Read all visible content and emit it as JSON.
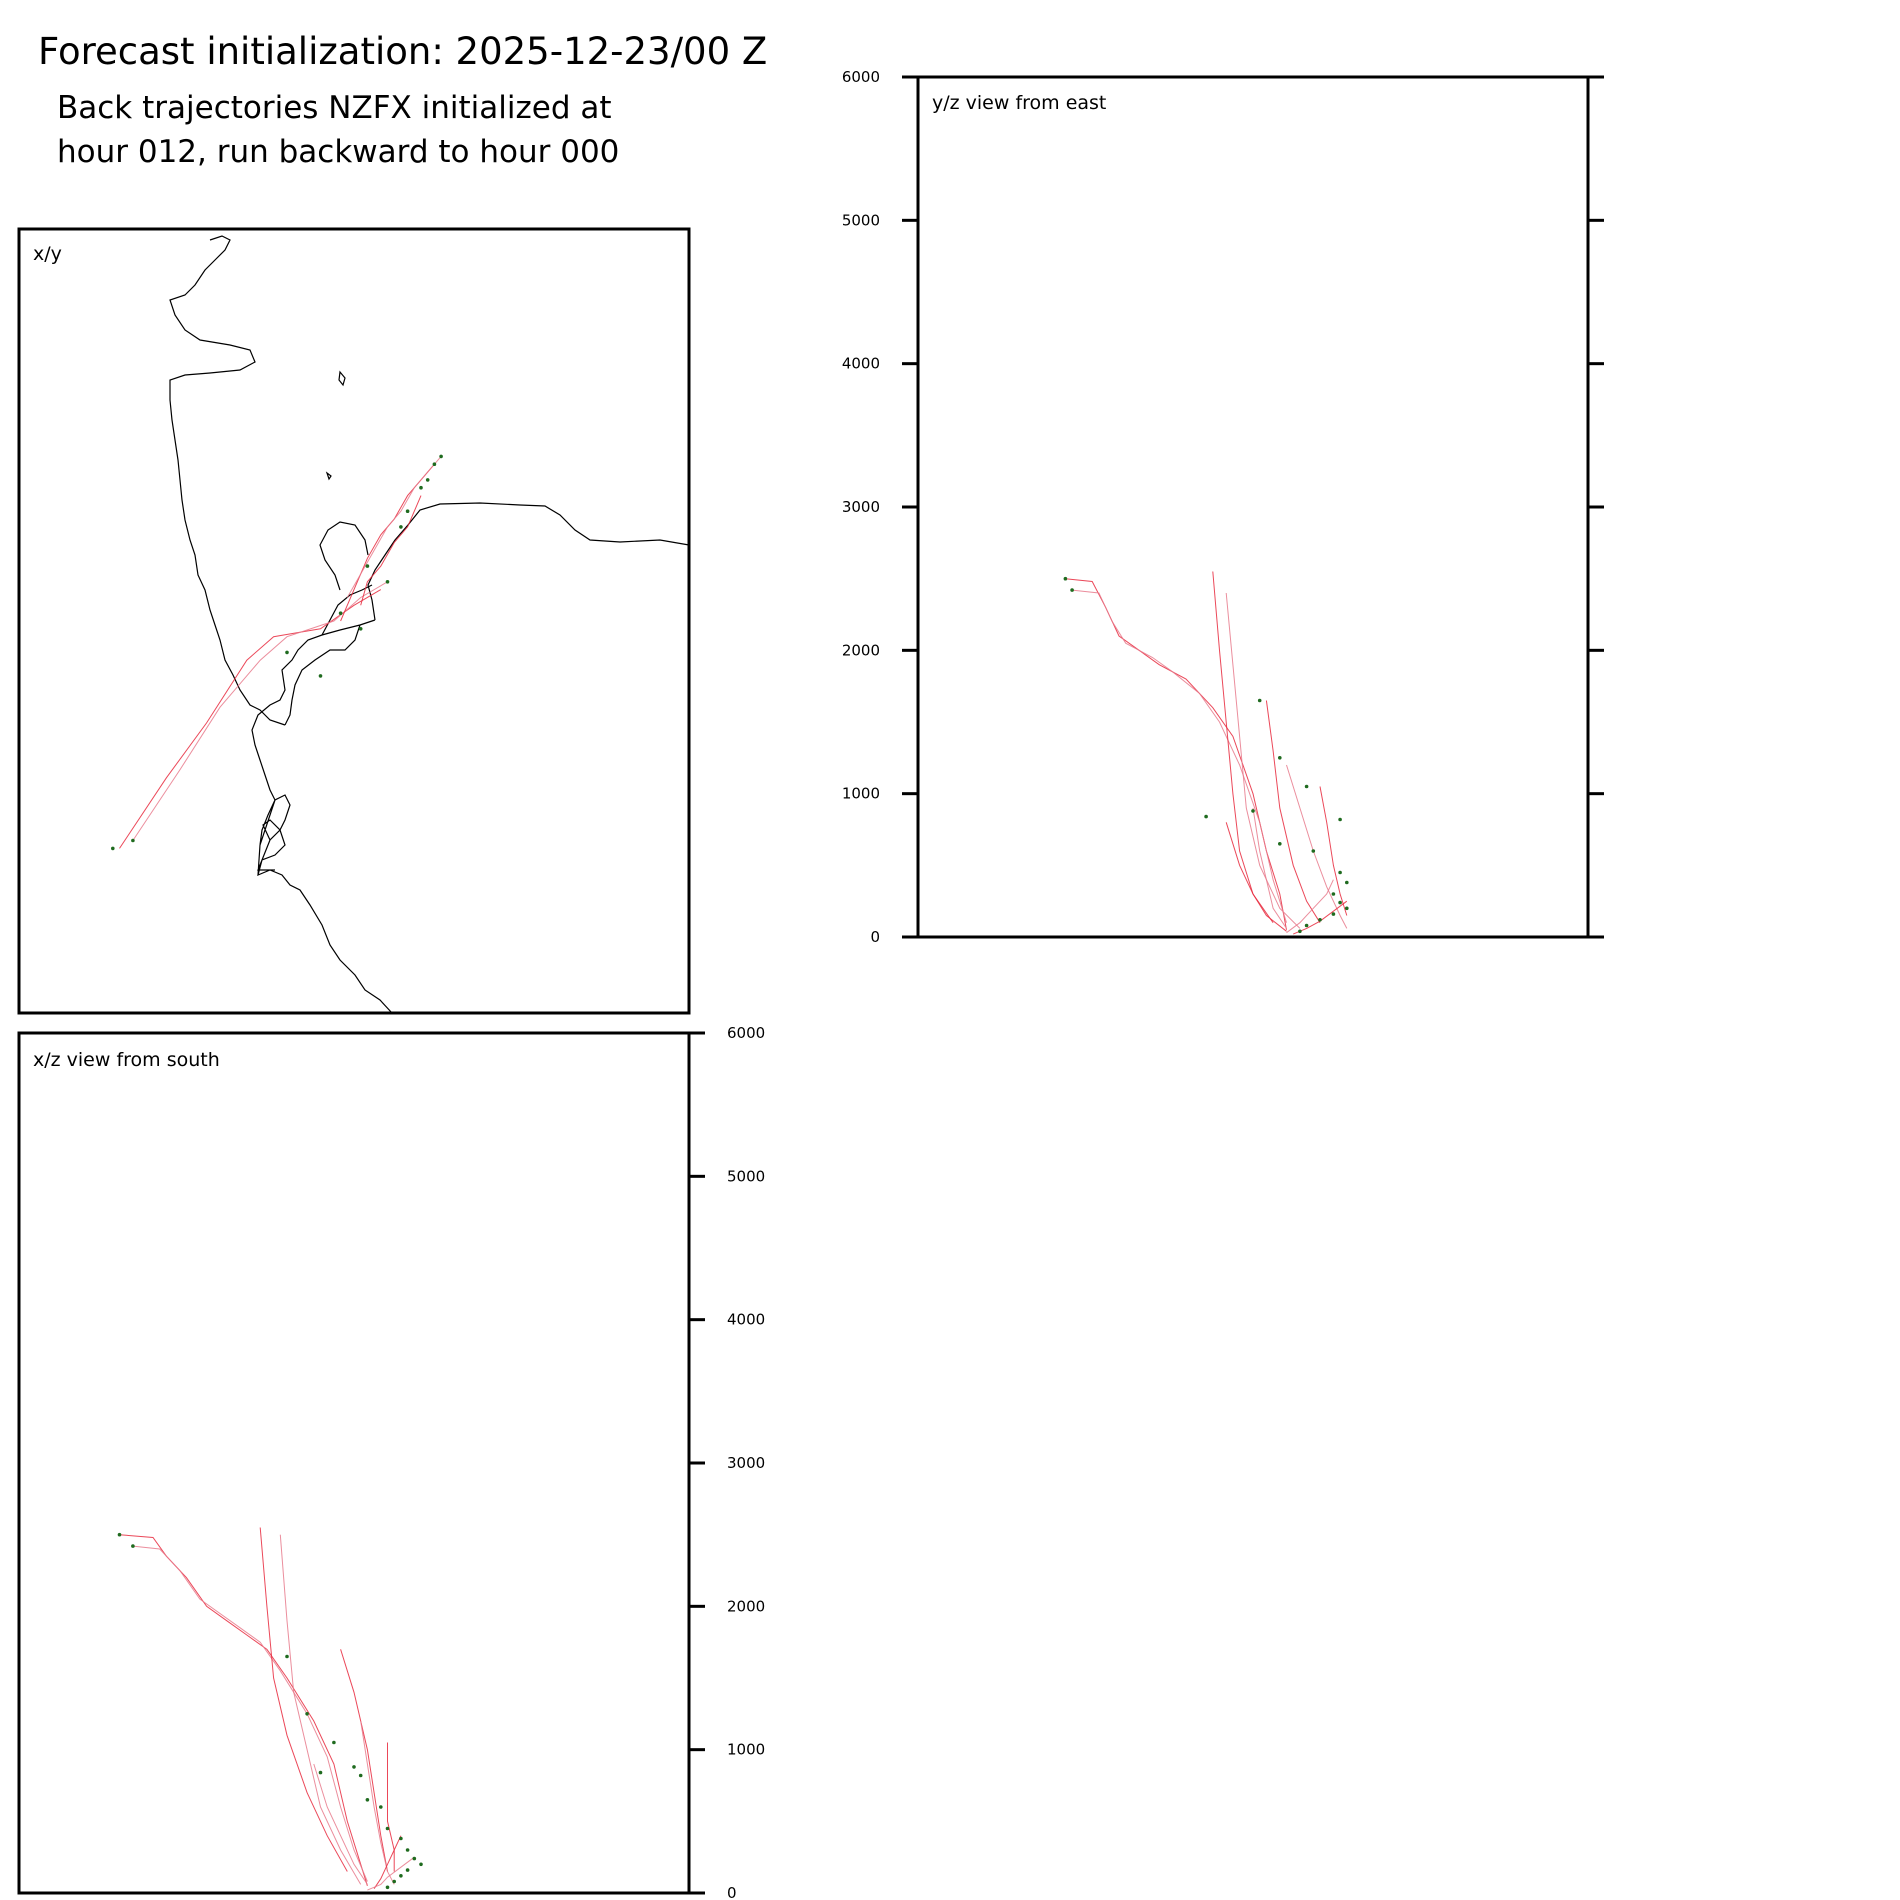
{
  "title": "Forecast initialization: 2025-12-23/00 Z",
  "subtitle_lines": [
    "Back trajectories NZFX initialized at",
    "hour 012, run backward to hour 000"
  ],
  "colors": {
    "trajectory": "#e8283c",
    "trajectory_light": "#e87a8c",
    "endpoint": "#1f6b1f",
    "coastline": "#000000",
    "frame": "#000000"
  },
  "chart_data": [
    {
      "type": "line",
      "panel": "x/y",
      "title": "x/y",
      "xlabel": "",
      "ylabel": "",
      "xlim": [
        0,
        100
      ],
      "ylim": [
        0,
        100
      ],
      "grid": false,
      "note_units": "map units (relative), no ticks shown",
      "series": [
        {
          "points": [
            [
              15,
              21
            ],
            [
              22,
              30
            ],
            [
              28,
              37
            ],
            [
              34,
              45
            ],
            [
              38,
              48
            ],
            [
              45,
              49
            ],
            [
              50,
              52
            ],
            [
              54,
              54
            ]
          ]
        },
        {
          "points": [
            [
              17,
              22
            ],
            [
              24,
              31
            ],
            [
              30,
              39
            ],
            [
              36,
              45
            ],
            [
              40,
              48
            ],
            [
              47,
              50
            ],
            [
              51,
              53
            ],
            [
              55,
              55
            ]
          ]
        },
        {
          "points": [
            [
              48,
              50
            ],
            [
              50,
              54
            ],
            [
              52,
              58
            ],
            [
              54,
              61
            ],
            [
              56,
              63
            ],
            [
              58,
              66
            ],
            [
              60,
              68
            ],
            [
              62,
              70
            ]
          ]
        },
        {
          "points": [
            [
              49,
              53
            ],
            [
              51,
              56
            ],
            [
              53,
              59
            ],
            [
              55,
              62
            ],
            [
              57,
              64
            ],
            [
              59,
              67
            ],
            [
              61,
              69
            ],
            [
              63,
              71
            ]
          ]
        },
        {
          "points": [
            [
              51,
              52
            ],
            [
              52,
              55
            ],
            [
              54,
              57
            ],
            [
              56,
              60
            ],
            [
              58,
              62
            ],
            [
              59,
              64
            ],
            [
              60,
              66
            ]
          ]
        }
      ],
      "endpoints": [
        [
          14,
          21
        ],
        [
          17,
          22
        ],
        [
          40,
          46
        ],
        [
          45,
          43
        ],
        [
          51,
          49
        ],
        [
          48,
          51
        ],
        [
          55,
          55
        ],
        [
          58,
          64
        ],
        [
          60,
          67
        ],
        [
          61,
          68
        ],
        [
          62,
          70
        ],
        [
          63,
          71
        ],
        [
          57,
          62
        ],
        [
          52,
          57
        ]
      ]
    },
    {
      "type": "line",
      "panel": "y/z",
      "title": "y/z view from east",
      "xlabel": "",
      "ylabel": "",
      "xlim": [
        0,
        100
      ],
      "ylim": [
        0,
        6000
      ],
      "grid": false,
      "yticks": [
        0,
        1000,
        2000,
        3000,
        4000,
        5000,
        6000
      ],
      "tick_labels": [
        "0",
        "1000",
        "2000",
        "3000",
        "4000",
        "5000",
        "6000"
      ],
      "series": [
        {
          "points": [
            [
              22,
              2500
            ],
            [
              26,
              2480
            ],
            [
              28,
              2300
            ],
            [
              30,
              2100
            ],
            [
              33,
              2000
            ],
            [
              36,
              1900
            ],
            [
              40,
              1800
            ],
            [
              44,
              1600
            ],
            [
              47,
              1400
            ],
            [
              50,
              1000
            ],
            [
              52,
              600
            ],
            [
              54,
              300
            ],
            [
              55,
              50
            ]
          ]
        },
        {
          "points": [
            [
              23,
              2420
            ],
            [
              27,
              2400
            ],
            [
              29,
              2200
            ],
            [
              31,
              2050
            ],
            [
              35,
              1950
            ],
            [
              38,
              1850
            ],
            [
              42,
              1700
            ],
            [
              45,
              1500
            ],
            [
              48,
              1200
            ],
            [
              51,
              800
            ],
            [
              53,
              400
            ],
            [
              55,
              100
            ]
          ]
        },
        {
          "points": [
            [
              44,
              2550
            ],
            [
              45,
              2000
            ],
            [
              46,
              1500
            ],
            [
              47,
              1000
            ],
            [
              48,
              600
            ],
            [
              50,
              300
            ],
            [
              53,
              100
            ]
          ]
        },
        {
          "points": [
            [
              46,
              2400
            ],
            [
              47,
              1900
            ],
            [
              48,
              1400
            ],
            [
              49,
              900
            ],
            [
              51,
              500
            ],
            [
              54,
              200
            ],
            [
              57,
              60
            ]
          ]
        },
        {
          "points": [
            [
              52,
              1650
            ],
            [
              53,
              1300
            ],
            [
              54,
              900
            ],
            [
              56,
              500
            ],
            [
              58,
              250
            ],
            [
              60,
              100
            ]
          ]
        },
        {
          "points": [
            [
              55,
              1200
            ],
            [
              57,
              900
            ],
            [
              59,
              600
            ],
            [
              61,
              350
            ],
            [
              63,
              150
            ],
            [
              64,
              60
            ]
          ]
        },
        {
          "points": [
            [
              60,
              1050
            ],
            [
              61,
              800
            ],
            [
              62,
              500
            ],
            [
              63,
              300
            ],
            [
              64,
              150
            ]
          ]
        },
        {
          "points": [
            [
              50,
              900
            ],
            [
              51,
              600
            ],
            [
              52,
              400
            ],
            [
              53,
              200
            ],
            [
              55,
              60
            ]
          ]
        },
        {
          "points": [
            [
              46,
              800
            ],
            [
              48,
              500
            ],
            [
              50,
              300
            ],
            [
              52,
              150
            ],
            [
              55,
              40
            ]
          ]
        },
        {
          "points": [
            [
              62,
              400
            ],
            [
              61,
              300
            ],
            [
              59,
              200
            ],
            [
              57,
              100
            ],
            [
              55,
              30
            ]
          ]
        },
        {
          "points": [
            [
              64,
              250
            ],
            [
              62,
              180
            ],
            [
              60,
              110
            ],
            [
              58,
              60
            ],
            [
              56,
              20
            ]
          ]
        }
      ],
      "endpoints": [
        [
          22,
          2500
        ],
        [
          23,
          2420
        ],
        [
          51,
          1650
        ],
        [
          54,
          1250
        ],
        [
          58,
          1050
        ],
        [
          63,
          820
        ],
        [
          43,
          840
        ],
        [
          50,
          880
        ],
        [
          54,
          650
        ],
        [
          59,
          600
        ],
        [
          63,
          450
        ],
        [
          64,
          380
        ],
        [
          62,
          300
        ],
        [
          63,
          240
        ],
        [
          64,
          200
        ],
        [
          62,
          160
        ],
        [
          60,
          120
        ],
        [
          58,
          80
        ],
        [
          57,
          40
        ]
      ]
    },
    {
      "type": "line",
      "panel": "x/z",
      "title": "x/z view from south",
      "xlabel": "",
      "ylabel": "",
      "xlim": [
        0,
        100
      ],
      "ylim": [
        0,
        6000
      ],
      "grid": false,
      "yticks": [
        0,
        1000,
        2000,
        3000,
        4000,
        5000,
        6000
      ],
      "tick_labels": [
        "0",
        "1000",
        "2000",
        "3000",
        "4000",
        "5000",
        "6000"
      ],
      "series": [
        {
          "points": [
            [
              15,
              2500
            ],
            [
              20,
              2480
            ],
            [
              22,
              2350
            ],
            [
              25,
              2200
            ],
            [
              28,
              2000
            ],
            [
              31,
              1900
            ],
            [
              34,
              1800
            ],
            [
              37,
              1700
            ],
            [
              40,
              1500
            ],
            [
              44,
              1200
            ],
            [
              47,
              900
            ],
            [
              49,
              500
            ],
            [
              51,
              200
            ],
            [
              52,
              50
            ]
          ]
        },
        {
          "points": [
            [
              17,
              2420
            ],
            [
              21,
              2400
            ],
            [
              24,
              2250
            ],
            [
              27,
              2050
            ],
            [
              30,
              1950
            ],
            [
              33,
              1850
            ],
            [
              36,
              1750
            ],
            [
              39,
              1550
            ],
            [
              43,
              1250
            ],
            [
              46,
              950
            ],
            [
              48,
              600
            ],
            [
              50,
              300
            ],
            [
              52,
              80
            ]
          ]
        },
        {
          "points": [
            [
              36,
              2550
            ],
            [
              37,
              2000
            ],
            [
              38,
              1500
            ],
            [
              40,
              1100
            ],
            [
              43,
              700
            ],
            [
              46,
              400
            ],
            [
              49,
              150
            ]
          ]
        },
        {
          "points": [
            [
              39,
              2500
            ],
            [
              40,
              1900
            ],
            [
              41,
              1400
            ],
            [
              43,
              1000
            ],
            [
              45,
              600
            ],
            [
              48,
              300
            ],
            [
              51,
              60
            ]
          ]
        },
        {
          "points": [
            [
              48,
              1700
            ],
            [
              50,
              1400
            ],
            [
              52,
              1000
            ],
            [
              53,
              700
            ],
            [
              54,
              400
            ],
            [
              55,
              150
            ]
          ]
        },
        {
          "points": [
            [
              51,
              1200
            ],
            [
              52,
              900
            ],
            [
              53,
              600
            ],
            [
              54,
              350
            ],
            [
              55,
              150
            ],
            [
              56,
              60
            ]
          ]
        },
        {
          "points": [
            [
              55,
              1050
            ],
            [
              55,
              800
            ],
            [
              55,
              500
            ],
            [
              56,
              300
            ],
            [
              56,
              150
            ]
          ]
        },
        {
          "points": [
            [
              44,
              900
            ],
            [
              46,
              600
            ],
            [
              48,
              400
            ],
            [
              50,
              200
            ],
            [
              52,
              60
            ]
          ]
        },
        {
          "points": [
            [
              57,
              400
            ],
            [
              56,
              300
            ],
            [
              55,
              200
            ],
            [
              54,
              100
            ],
            [
              53,
              30
            ]
          ]
        },
        {
          "points": [
            [
              59,
              250
            ],
            [
              57,
              180
            ],
            [
              55,
              110
            ],
            [
              54,
              60
            ],
            [
              52,
              20
            ]
          ]
        }
      ],
      "endpoints": [
        [
          15,
          2500
        ],
        [
          17,
          2420
        ],
        [
          40,
          1650
        ],
        [
          43,
          1250
        ],
        [
          47,
          1050
        ],
        [
          51,
          820
        ],
        [
          45,
          840
        ],
        [
          50,
          880
        ],
        [
          52,
          650
        ],
        [
          54,
          600
        ],
        [
          55,
          450
        ],
        [
          57,
          380
        ],
        [
          58,
          300
        ],
        [
          59,
          240
        ],
        [
          60,
          200
        ],
        [
          58,
          160
        ],
        [
          57,
          120
        ],
        [
          56,
          80
        ],
        [
          55,
          40
        ]
      ]
    }
  ]
}
